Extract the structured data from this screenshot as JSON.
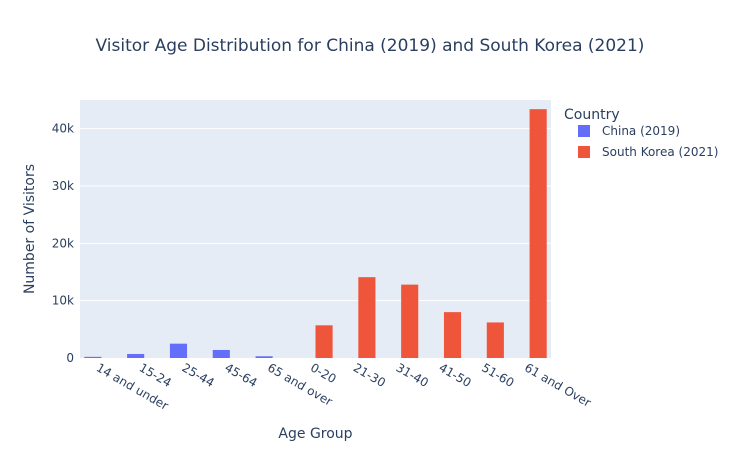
{
  "chart_data": {
    "type": "bar",
    "title": "Visitor Age Distribution for China (2019) and South Korea (2021)",
    "xlabel": "Age Group",
    "ylabel": "Number of Visitors",
    "categories": [
      "14 and under",
      "15-24",
      "25-44",
      "45-64",
      "65 and over",
      "0-20",
      "21-30",
      "31-40",
      "41-50",
      "51-60",
      "61 and Over"
    ],
    "series": [
      {
        "name": "China (2019)",
        "color": "#636efa",
        "values": [
          200,
          700,
          2500,
          1400,
          300,
          null,
          null,
          null,
          null,
          null,
          null
        ]
      },
      {
        "name": "South Korea (2021)",
        "color": "#ef553b",
        "values": [
          null,
          null,
          null,
          null,
          null,
          5700,
          14100,
          12800,
          8000,
          6200,
          43400
        ]
      }
    ],
    "ylim": [
      0,
      45000
    ],
    "yticks": [
      0,
      10000,
      20000,
      30000,
      40000
    ],
    "ytick_labels": [
      "0",
      "10k",
      "20k",
      "30k",
      "40k"
    ],
    "grid": true,
    "plot_background": "#e5ecf6",
    "legend": {
      "title": "Country",
      "placement": "right"
    }
  }
}
